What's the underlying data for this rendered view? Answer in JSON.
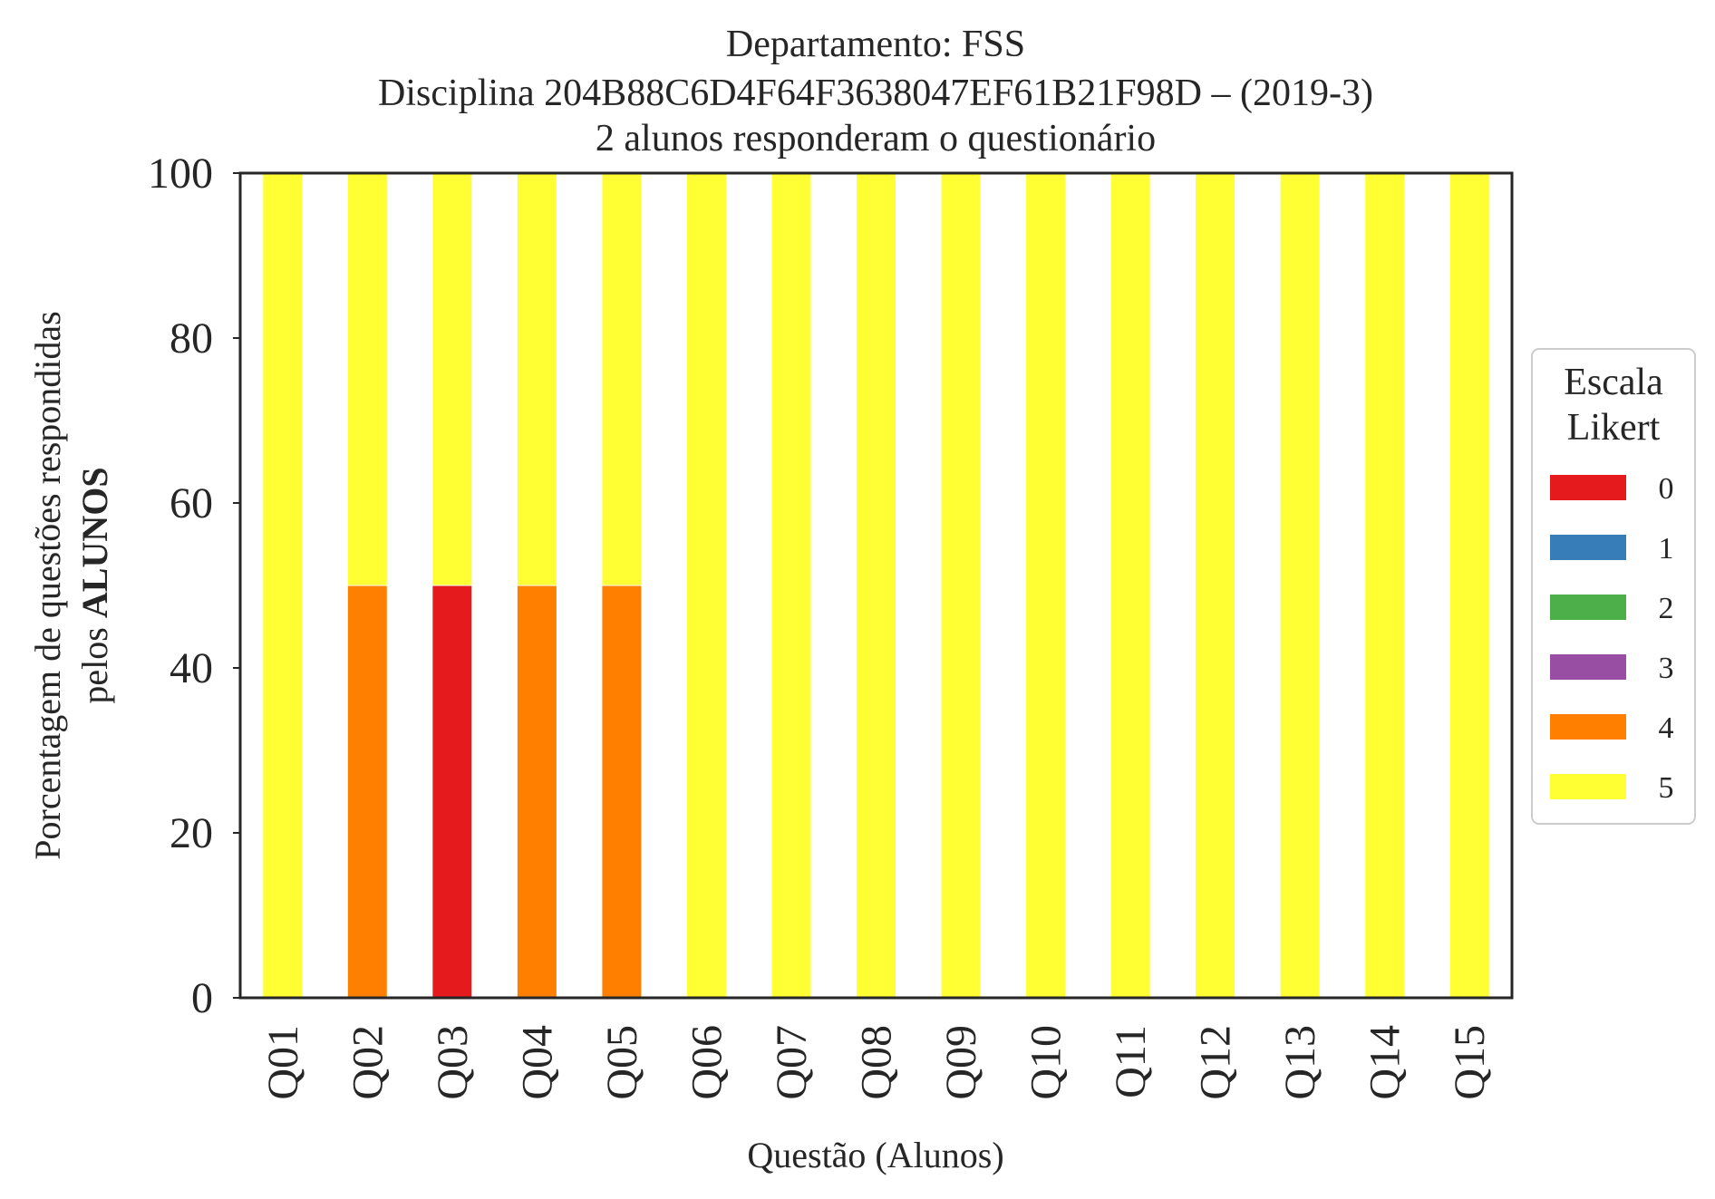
{
  "chart_data": {
    "type": "bar",
    "stacked": true,
    "title_lines": [
      "Departamento: FSS",
      "Disciplina 204B88C6D4F64F3638047EF61B21F98D – (2019-3)",
      "2 alunos responderam o questionário"
    ],
    "xlabel": "Questão (Alunos)",
    "ylabel_line1": "Porcentagem de questões respondidas",
    "ylabel_line2_prefix": "pelos ",
    "ylabel_line2_bold": "ALUNOS",
    "ylim": [
      0,
      100
    ],
    "yticks": [
      "0",
      "20",
      "40",
      "60",
      "80",
      "100"
    ],
    "categories": [
      "Q01",
      "Q02",
      "Q03",
      "Q04",
      "Q05",
      "Q06",
      "Q07",
      "Q08",
      "Q09",
      "Q10",
      "Q11",
      "Q12",
      "Q13",
      "Q14",
      "Q15"
    ],
    "legend_title_lines": [
      "Escala",
      "Likert"
    ],
    "legend_position": "center-right outside",
    "grid": false,
    "series": [
      {
        "name": "0",
        "color": "#e41a1c",
        "values": [
          0,
          0,
          50,
          0,
          0,
          0,
          0,
          0,
          0,
          0,
          0,
          0,
          0,
          0,
          0
        ]
      },
      {
        "name": "1",
        "color": "#377eb8",
        "values": [
          0,
          0,
          0,
          0,
          0,
          0,
          0,
          0,
          0,
          0,
          0,
          0,
          0,
          0,
          0
        ]
      },
      {
        "name": "2",
        "color": "#4daf4a",
        "values": [
          0,
          0,
          0,
          0,
          0,
          0,
          0,
          0,
          0,
          0,
          0,
          0,
          0,
          0,
          0
        ]
      },
      {
        "name": "3",
        "color": "#984ea3",
        "values": [
          0,
          0,
          0,
          0,
          0,
          0,
          0,
          0,
          0,
          0,
          0,
          0,
          0,
          0,
          0
        ]
      },
      {
        "name": "4",
        "color": "#ff7f00",
        "values": [
          0,
          50,
          0,
          50,
          50,
          0,
          0,
          0,
          0,
          0,
          0,
          0,
          0,
          0,
          0
        ]
      },
      {
        "name": "5",
        "color": "#ffff33",
        "values": [
          100,
          50,
          50,
          50,
          50,
          100,
          100,
          100,
          100,
          100,
          100,
          100,
          100,
          100,
          100
        ]
      }
    ]
  }
}
